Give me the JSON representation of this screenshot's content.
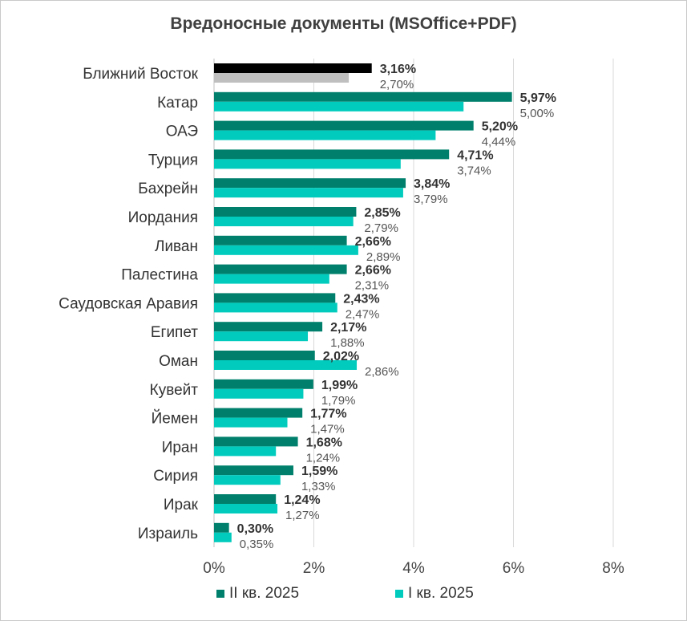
{
  "chart_data": {
    "type": "bar",
    "orientation": "horizontal",
    "title": "Вредоносные документы (MSOffice+PDF)",
    "categories": [
      "Ближний Восток",
      "Катар",
      "ОАЭ",
      "Турция",
      "Бахрейн",
      "Иордания",
      "Ливан",
      "Палестина",
      "Саудовская Аравия",
      "Египет",
      "Оман",
      "Кувейт",
      "Йемен",
      "Иран",
      "Сирия",
      "Ирак",
      "Израиль"
    ],
    "series": [
      {
        "name": "II кв. 2025",
        "values": [
          3.16,
          5.97,
          5.2,
          4.71,
          3.84,
          2.85,
          2.66,
          2.66,
          2.43,
          2.17,
          2.02,
          1.99,
          1.77,
          1.68,
          1.59,
          1.24,
          0.3
        ],
        "labels": [
          "3,16%",
          "5,97%",
          "5,20%",
          "4,71%",
          "3,84%",
          "2,85%",
          "2,66%",
          "2,66%",
          "2,43%",
          "2,17%",
          "2,02%",
          "1,99%",
          "1,77%",
          "1,68%",
          "1,59%",
          "1,24%",
          "0,30%"
        ],
        "color": "#00806c",
        "first_bar_color": "#000000"
      },
      {
        "name": "I кв. 2025",
        "values": [
          2.7,
          5.0,
          4.44,
          3.74,
          3.79,
          2.79,
          2.89,
          2.31,
          2.47,
          1.88,
          2.86,
          1.79,
          1.47,
          1.24,
          1.33,
          1.27,
          0.35
        ],
        "labels": [
          "2,70%",
          "5,00%",
          "4,44%",
          "3,74%",
          "3,79%",
          "2,79%",
          "2,89%",
          "2,31%",
          "2,47%",
          "1,88%",
          "2,86%",
          "1,79%",
          "1,47%",
          "1,24%",
          "1,33%",
          "1,27%",
          "0,35%"
        ],
        "color": "#00cbbd",
        "first_bar_color": "#bfbfbf"
      }
    ],
    "xlim": [
      0,
      8
    ],
    "xticks": [
      0,
      2,
      4,
      6,
      8
    ],
    "xtick_labels": [
      "0%",
      "2%",
      "4%",
      "6%",
      "8%"
    ],
    "grid": true,
    "legend_position": "bottom"
  }
}
